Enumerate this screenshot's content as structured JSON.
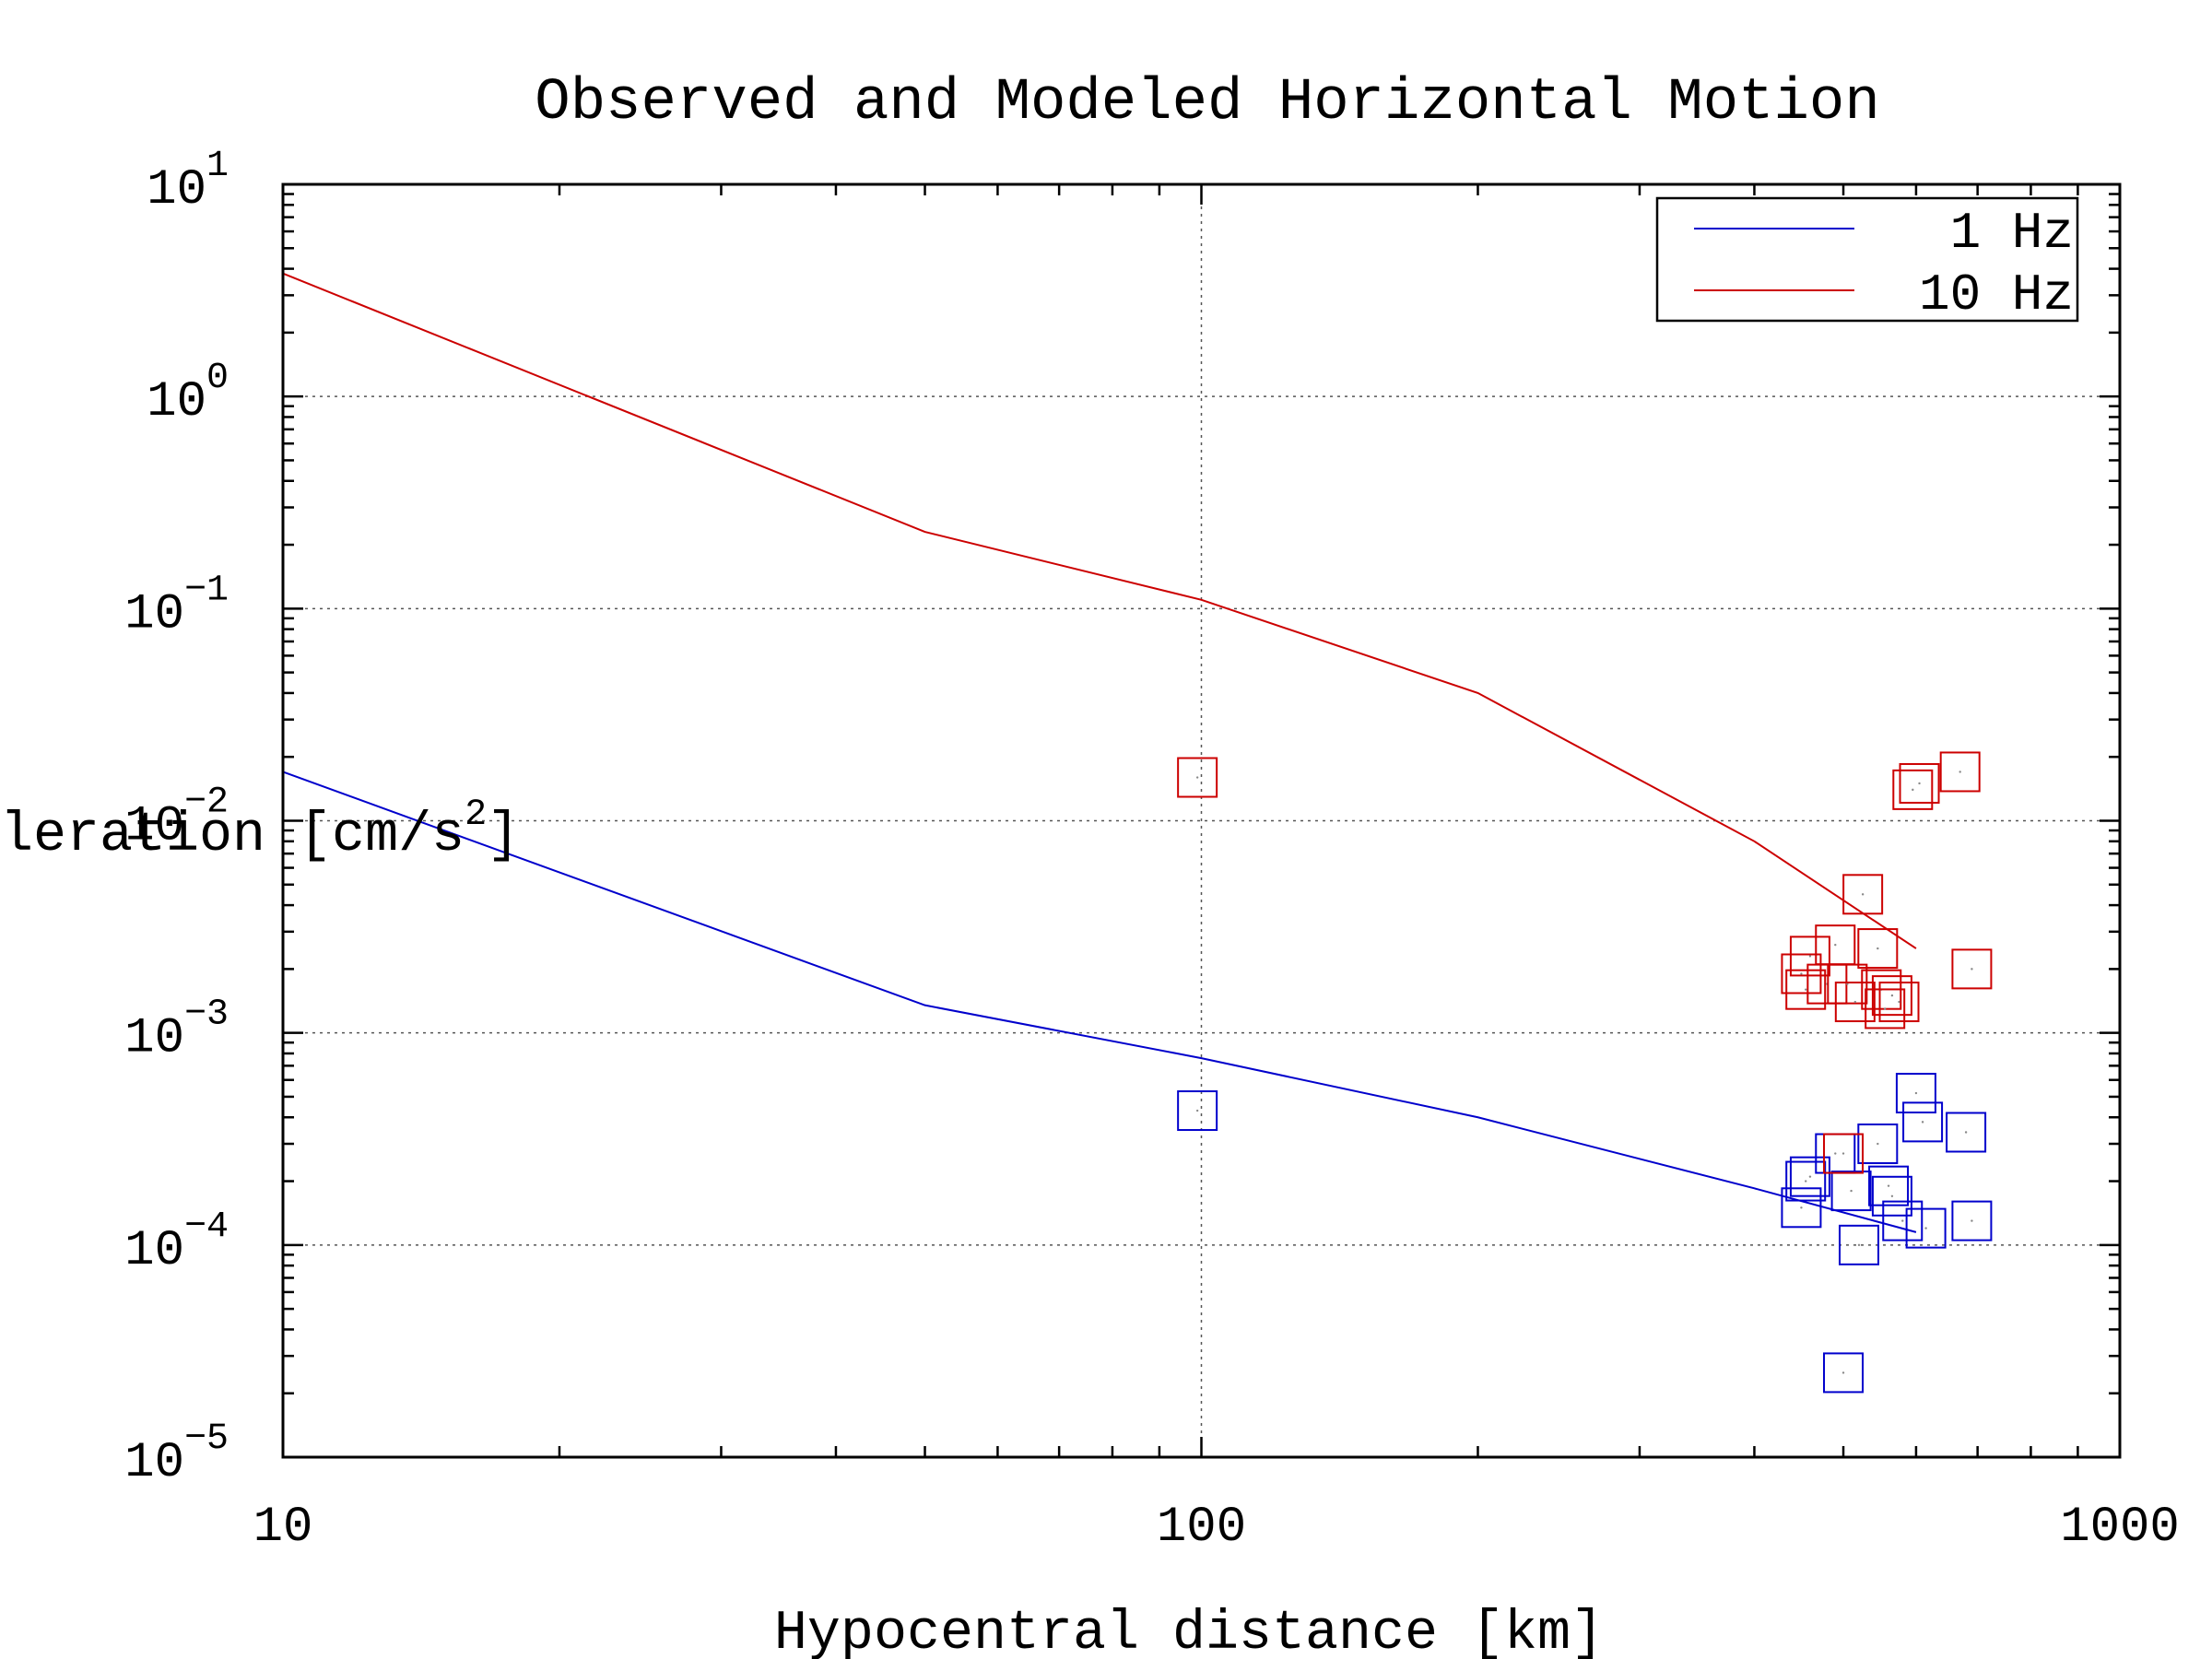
{
  "chart_data": {
    "type": "scatter",
    "title": "Observed and Modeled Horizontal Motion",
    "xlabel": "Hypocentral distance [km]",
    "ylabel_main": "leration [cm/s",
    "ylabel_sup": "2",
    "ylabel_close": "]",
    "x_scale": "log",
    "y_scale": "log",
    "xlim": [
      10,
      1000
    ],
    "ylim": [
      1e-05,
      10
    ],
    "grid": true,
    "legend_position": "top-right",
    "x_ticks": [
      {
        "value": 10,
        "label": "10"
      },
      {
        "value": 100,
        "label": "100"
      },
      {
        "value": 1000,
        "label": "1000"
      }
    ],
    "y_ticks": [
      {
        "value": 10,
        "base": "10",
        "exp": "1"
      },
      {
        "value": 1,
        "base": "10",
        "exp": "0"
      },
      {
        "value": 0.1,
        "base": "10",
        "exp": "−1"
      },
      {
        "value": 0.01,
        "base": "10",
        "exp": "−2"
      },
      {
        "value": 0.001,
        "base": "10",
        "exp": "−3"
      },
      {
        "value": 0.0001,
        "base": "10",
        "exp": "−4"
      },
      {
        "value": 1e-05,
        "base": "10",
        "exp": "−5"
      }
    ],
    "series": [
      {
        "name": "1 Hz",
        "color": "#0000cc",
        "model_line": {
          "x": [
            10,
            50,
            100,
            200,
            400,
            600
          ],
          "y": [
            0.017,
            0.00135,
            0.00076,
            0.0004,
            0.000185,
            0.000115
          ]
        },
        "observed": {
          "x": [
            99,
            450,
            455,
            460,
            490,
            500,
            510,
            520,
            545,
            560,
            565,
            580,
            600,
            610,
            615,
            680,
            690
          ],
          "y": [
            0.00043,
            0.00015,
            0.0002,
            0.00021,
            0.00027,
            2.5e-05,
            0.00018,
            0.0001,
            0.0003,
            0.00019,
            0.00017,
            0.00013,
            0.00052,
            0.00038,
            0.00012,
            0.00034,
            0.00013
          ]
        }
      },
      {
        "name": "10 Hz",
        "color": "#cc0000",
        "model_line": {
          "x": [
            10,
            50,
            100,
            200,
            400,
            600
          ],
          "y": [
            3.8,
            0.23,
            0.11,
            0.04,
            0.008,
            0.0025
          ]
        },
        "observed": {
          "x": [
            99,
            450,
            455,
            460,
            480,
            490,
            500,
            505,
            515,
            525,
            545,
            550,
            555,
            565,
            575,
            595,
            605,
            670,
            690
          ],
          "y": [
            0.016,
            0.0019,
            0.0016,
            0.0023,
            0.0017,
            0.0026,
            0.00027,
            0.0017,
            0.0014,
            0.0045,
            0.0025,
            0.0016,
            0.0013,
            0.0015,
            0.0014,
            0.014,
            0.015,
            0.017,
            0.002
          ]
        }
      }
    ]
  }
}
